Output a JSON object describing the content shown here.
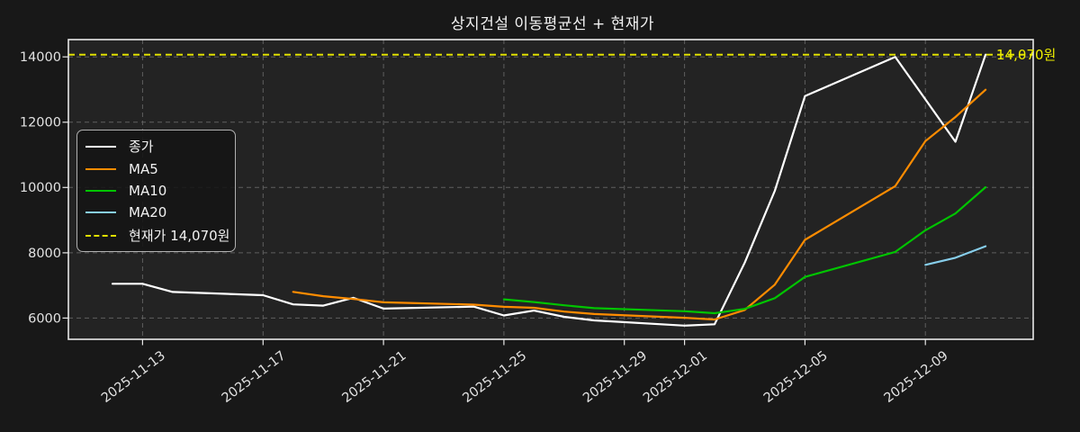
{
  "title": "상지건설 이동평균선 + 현재가",
  "current_price_label": "현재가 14,070원",
  "annotation": {
    "text": "14,070원",
    "color": "#f0f000"
  },
  "legend": {
    "items": [
      {
        "label": "종가",
        "color": "#ffffff",
        "style": "solid"
      },
      {
        "label": "MA5",
        "color": "#ff8c00",
        "style": "solid"
      },
      {
        "label": "MA10",
        "color": "#00c400",
        "style": "solid"
      },
      {
        "label": "MA20",
        "color": "#87ceeb",
        "style": "solid"
      },
      {
        "label": "현재가 14,070원",
        "color": "#e0e000",
        "style": "dashed"
      }
    ]
  },
  "chart_data": {
    "type": "line",
    "title": "상지건설 이동평균선 + 현재가",
    "xlabel": "",
    "ylabel": "",
    "grid": true,
    "legend_position": "upper-left",
    "ylim": [
      5350,
      14530
    ],
    "y_ticks": [
      6000,
      8000,
      10000,
      12000,
      14000
    ],
    "x_tick_labels": [
      "2025-11-13",
      "2025-11-17",
      "2025-11-21",
      "2025-11-25",
      "2025-11-29",
      "2025-12-01",
      "2025-12-05",
      "2025-12-09"
    ],
    "dates": [
      "2025-11-12",
      "2025-11-13",
      "2025-11-14",
      "2025-11-17",
      "2025-11-18",
      "2025-11-19",
      "2025-11-20",
      "2025-11-21",
      "2025-11-24",
      "2025-11-25",
      "2025-11-26",
      "2025-11-27",
      "2025-11-28",
      "2025-12-01",
      "2025-12-02",
      "2025-12-03",
      "2025-12-04",
      "2025-12-05",
      "2025-12-08",
      "2025-12-09",
      "2025-12-10",
      "2025-12-11"
    ],
    "series": [
      {
        "name": "종가",
        "color": "#ffffff",
        "width": 2.2,
        "values": [
          7050,
          7050,
          6800,
          6700,
          6420,
          6380,
          6620,
          6290,
          6350,
          6080,
          6230,
          6040,
          5930,
          5770,
          5810,
          7700,
          9900,
          12800,
          14000,
          12700,
          11400,
          14070
        ]
      },
      {
        "name": "MA5",
        "color": "#ff8c00",
        "width": 2.2,
        "values": [
          null,
          null,
          null,
          null,
          6804,
          6670,
          6584,
          6482,
          6412,
          6344,
          6314,
          6198,
          6126,
          6010,
          5956,
          6250,
          7022,
          8396,
          10042,
          11420,
          12160,
          12994
        ]
      },
      {
        "name": "MA10",
        "color": "#00c400",
        "width": 2.2,
        "values": [
          null,
          null,
          null,
          null,
          null,
          null,
          null,
          null,
          null,
          6574,
          6492,
          6391,
          6304,
          6211,
          6150,
          6282,
          6610,
          7261,
          8026,
          8688,
          9205,
          10008
        ]
      },
      {
        "name": "MA20",
        "color": "#87ceeb",
        "width": 2.2,
        "values": [
          null,
          null,
          null,
          null,
          null,
          null,
          null,
          null,
          null,
          null,
          null,
          null,
          null,
          null,
          null,
          null,
          null,
          null,
          null,
          7631,
          7849,
          8200
        ]
      }
    ],
    "hline": {
      "value": 14070,
      "label": "14,070원",
      "color": "#e0e000",
      "style": "dashed"
    }
  }
}
